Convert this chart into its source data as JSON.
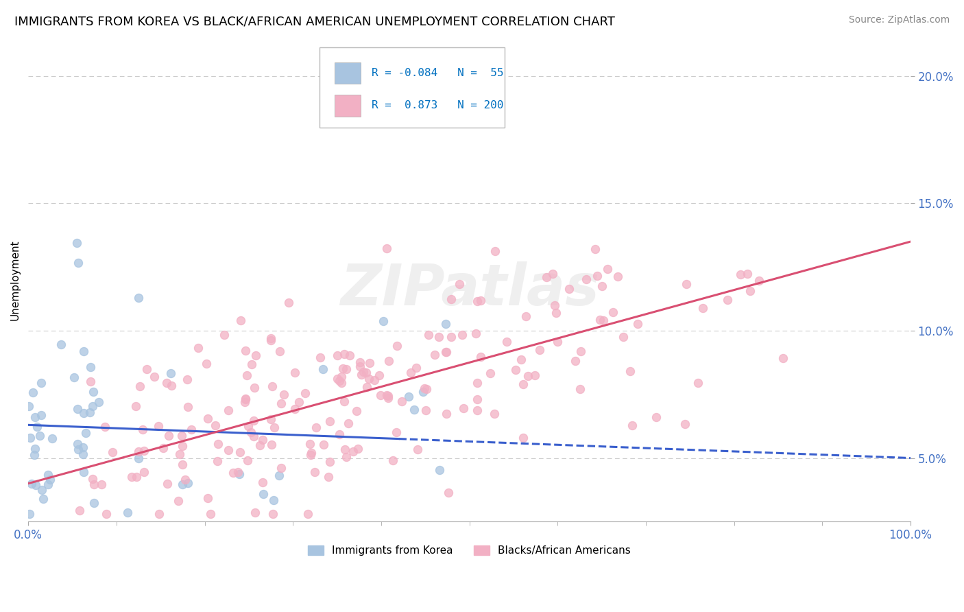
{
  "title": "IMMIGRANTS FROM KOREA VS BLACK/AFRICAN AMERICAN UNEMPLOYMENT CORRELATION CHART",
  "source": "Source: ZipAtlas.com",
  "ylabel": "Unemployment",
  "xlim": [
    0.0,
    1.0
  ],
  "ylim": [
    0.025,
    0.215
  ],
  "yticks": [
    0.05,
    0.1,
    0.15,
    0.2
  ],
  "ytick_labels": [
    "5.0%",
    "10.0%",
    "15.0%",
    "20.0%"
  ],
  "xtick_labels": [
    "0.0%",
    "100.0%"
  ],
  "korea_color": "#a8c4e0",
  "black_color": "#f2b0c4",
  "korea_line_color": "#3a5fcd",
  "black_line_color": "#d94f72",
  "title_fontsize": 13,
  "source_fontsize": 10,
  "background_color": "#ffffff",
  "grid_color": "#cccccc",
  "axis_label_color": "#4472c4",
  "legend_r_color": "#0070c0",
  "korea_R": -0.084,
  "korea_N": 55,
  "black_R": 0.873,
  "black_N": 200,
  "korea_line_x0": 0.0,
  "korea_line_y0": 0.063,
  "korea_line_x1": 1.0,
  "korea_line_y1": 0.05,
  "korea_line_solid_end": 0.42,
  "black_line_x0": 0.0,
  "black_line_y0": 0.04,
  "black_line_x1": 1.0,
  "black_line_y1": 0.135,
  "watermark_text": "ZIPatlas",
  "watermark_fontsize": 60,
  "watermark_color": "lightgray",
  "watermark_alpha": 0.35
}
